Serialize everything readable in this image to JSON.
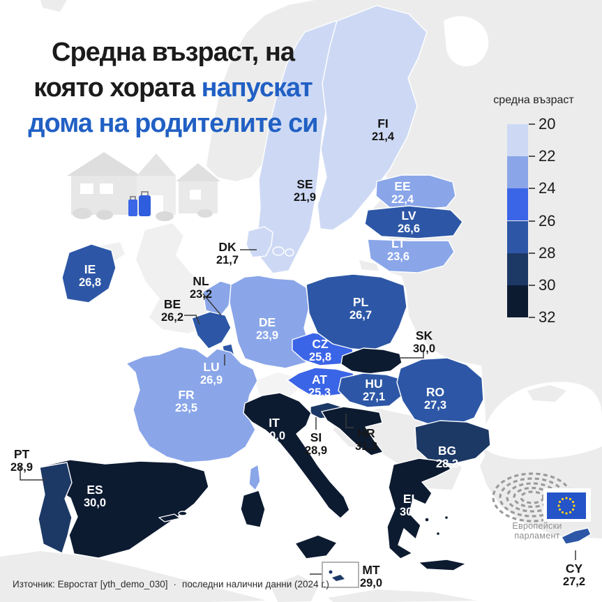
{
  "title": {
    "line1": "Средна възраст, на",
    "line2_dark": "която хората",
    "line2_accent": "напускат",
    "line3_accent": "дома на родителите си",
    "dark_color": "#1b1b1b",
    "accent_color": "#2160c4"
  },
  "legend": {
    "title": "средна възраст",
    "ticks": [
      "20",
      "22",
      "24",
      "26",
      "28",
      "30",
      "32"
    ],
    "bins": [
      {
        "range": "20–22",
        "color": "#cdd9f4"
      },
      {
        "range": "22–24",
        "color": "#8aa6e9"
      },
      {
        "range": "24–26",
        "color": "#3b65e7"
      },
      {
        "range": "26–28",
        "color": "#2d57a6"
      },
      {
        "range": "28–30",
        "color": "#1c3865"
      },
      {
        "range": "30–32",
        "color": "#0d1b31"
      }
    ]
  },
  "countries": [
    {
      "code": "FI",
      "value": "21,4",
      "num": 21.4
    },
    {
      "code": "SE",
      "value": "21,9",
      "num": 21.9
    },
    {
      "code": "EE",
      "value": "22,4",
      "num": 22.4
    },
    {
      "code": "LV",
      "value": "26,6",
      "num": 26.6
    },
    {
      "code": "LT",
      "value": "23,6",
      "num": 23.6
    },
    {
      "code": "DK",
      "value": "21,7",
      "num": 21.7
    },
    {
      "code": "IE",
      "value": "26,8",
      "num": 26.8
    },
    {
      "code": "NL",
      "value": "23,2",
      "num": 23.2
    },
    {
      "code": "BE",
      "value": "26,2",
      "num": 26.2
    },
    {
      "code": "DE",
      "value": "23,9",
      "num": 23.9
    },
    {
      "code": "LU",
      "value": "26,9",
      "num": 26.9
    },
    {
      "code": "FR",
      "value": "23,5",
      "num": 23.5
    },
    {
      "code": "CZ",
      "value": "25,8",
      "num": 25.8
    },
    {
      "code": "AT",
      "value": "25,3",
      "num": 25.3
    },
    {
      "code": "PL",
      "value": "26,7",
      "num": 26.7
    },
    {
      "code": "SK",
      "value": "30,0",
      "num": 30.0
    },
    {
      "code": "HU",
      "value": "27,1",
      "num": 27.1
    },
    {
      "code": "SI",
      "value": "28,9",
      "num": 28.9
    },
    {
      "code": "HR",
      "value": "31,3",
      "num": 31.3
    },
    {
      "code": "IT",
      "value": "30,0",
      "num": 30.0
    },
    {
      "code": "RO",
      "value": "27,3",
      "num": 27.3
    },
    {
      "code": "BG",
      "value": "28,2",
      "num": 28.2
    },
    {
      "code": "EL",
      "value": "30,7",
      "num": 30.7
    },
    {
      "code": "ES",
      "value": "30,0",
      "num": 30.0
    },
    {
      "code": "PT",
      "value": "28,9",
      "num": 28.9
    },
    {
      "code": "MT",
      "value": "29,0",
      "num": 29.0
    },
    {
      "code": "CY",
      "value": "27,2",
      "num": 27.2
    }
  ],
  "footer": {
    "source": "Източник: Евростат [yth_demo_030]",
    "separator": "·",
    "note": "последни налични данни (2024 г.)"
  },
  "logo": {
    "caption": "Европейски парламент",
    "flag_color": "#2554c8",
    "star_color": "#ffd21c"
  },
  "chart_data": {
    "type": "heatmap",
    "subtype": "choropleth-map",
    "title": "Средна възраст, на която хората напускат дома на родителите си",
    "legend_title": "средна възраст",
    "legend_range": [
      20,
      32
    ],
    "legend_step": 2,
    "categories": [
      "FI",
      "SE",
      "EE",
      "LV",
      "LT",
      "DK",
      "IE",
      "NL",
      "BE",
      "DE",
      "LU",
      "FR",
      "CZ",
      "AT",
      "PL",
      "SK",
      "HU",
      "SI",
      "HR",
      "IT",
      "RO",
      "BG",
      "EL",
      "ES",
      "PT",
      "MT",
      "CY"
    ],
    "values": [
      21.4,
      21.9,
      22.4,
      26.6,
      23.6,
      21.7,
      26.8,
      23.2,
      26.2,
      23.9,
      26.9,
      23.5,
      25.8,
      25.3,
      26.7,
      30.0,
      27.1,
      28.9,
      31.3,
      30.0,
      27.3,
      28.2,
      30.7,
      30.0,
      28.9,
      29.0,
      27.2
    ],
    "source": "Евростат [yth_demo_030], последни налични данни (2024 г.)"
  }
}
